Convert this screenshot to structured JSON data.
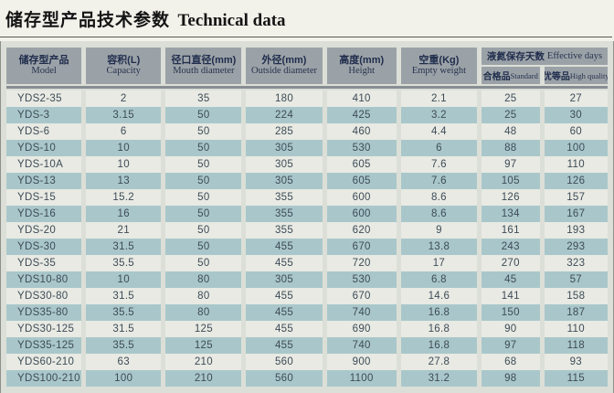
{
  "title": {
    "zh": "储存型产品技术参数",
    "en": "Technical data"
  },
  "table": {
    "columns": [
      {
        "zh": "储存型产品",
        "en": "Model"
      },
      {
        "zh": "容积(L)",
        "en": "Capacity"
      },
      {
        "zh": "径口直径(mm)",
        "en": "Mouth diameter"
      },
      {
        "zh": "外径(mm)",
        "en": "Outside diameter"
      },
      {
        "zh": "高度(mm)",
        "en": "Height"
      },
      {
        "zh": "空重(Kg)",
        "en": "Empty weight"
      }
    ],
    "group_header": {
      "zh": "液氮保存天数",
      "en": "Effective days"
    },
    "sub_columns": [
      {
        "zh": "合格品",
        "en": "Standard"
      },
      {
        "zh": "优等品",
        "en": "High quality"
      }
    ],
    "rows": [
      [
        "YDS2-35",
        "2",
        "35",
        "180",
        "410",
        "2.1",
        "25",
        "27"
      ],
      [
        "YDS-3",
        "3.15",
        "50",
        "224",
        "425",
        "3.2",
        "25",
        "30"
      ],
      [
        "YDS-6",
        "6",
        "50",
        "285",
        "460",
        "4.4",
        "48",
        "60"
      ],
      [
        "YDS-10",
        "10",
        "50",
        "305",
        "530",
        "6",
        "88",
        "100"
      ],
      [
        "YDS-10A",
        "10",
        "50",
        "305",
        "605",
        "7.6",
        "97",
        "110"
      ],
      [
        "YDS-13",
        "13",
        "50",
        "305",
        "605",
        "7.6",
        "105",
        "126"
      ],
      [
        "YDS-15",
        "15.2",
        "50",
        "355",
        "600",
        "8.6",
        "126",
        "157"
      ],
      [
        "YDS-16",
        "16",
        "50",
        "355",
        "600",
        "8.6",
        "134",
        "167"
      ],
      [
        "YDS-20",
        "21",
        "50",
        "355",
        "620",
        "9",
        "161",
        "193"
      ],
      [
        "YDS-30",
        "31.5",
        "50",
        "455",
        "670",
        "13.8",
        "243",
        "293"
      ],
      [
        "YDS-35",
        "35.5",
        "50",
        "455",
        "720",
        "17",
        "270",
        "323"
      ],
      [
        "YDS10-80",
        "10",
        "80",
        "305",
        "530",
        "6.8",
        "45",
        "57"
      ],
      [
        "YDS30-80",
        "31.5",
        "80",
        "455",
        "670",
        "14.6",
        "141",
        "158"
      ],
      [
        "YDS35-80",
        "35.5",
        "80",
        "455",
        "740",
        "16.8",
        "150",
        "187"
      ],
      [
        "YDS30-125",
        "31.5",
        "125",
        "455",
        "690",
        "16.8",
        "90",
        "110"
      ],
      [
        "YDS35-125",
        "35.5",
        "125",
        "455",
        "740",
        "16.8",
        "97",
        "118"
      ],
      [
        "YDS60-210",
        "63",
        "210",
        "560",
        "900",
        "27.8",
        "68",
        "93"
      ],
      [
        "YDS100-210",
        "100",
        "210",
        "560",
        "1100",
        "31.2",
        "98",
        "115"
      ]
    ]
  },
  "colors": {
    "header_bg": "#9ba2a7",
    "row_light": "#e8eae3",
    "row_teal": "#a9c7ca",
    "panel_bg": "#dcdfd7",
    "header_text": "#202d4d",
    "cell_text": "#3e4b57"
  }
}
